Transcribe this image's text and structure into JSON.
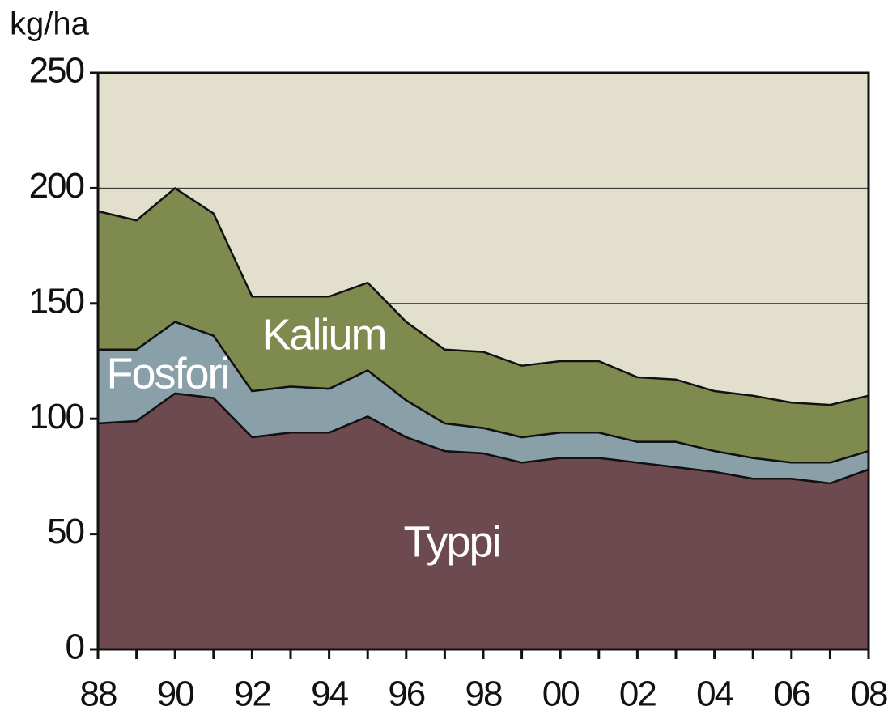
{
  "chart_data": {
    "type": "stacked_area",
    "y_label": "kg/ha",
    "categories": [
      "88",
      null,
      "90",
      null,
      "92",
      null,
      "94",
      null,
      "96",
      null,
      "98",
      null,
      "00",
      null,
      "02",
      null,
      "04",
      null,
      "06",
      null,
      "08"
    ],
    "series": [
      {
        "name": "Typpi",
        "color": "#6d4a4f",
        "values": [
          98,
          99,
          111,
          109,
          92,
          94,
          94,
          101,
          92,
          86,
          85,
          81,
          83,
          83,
          81,
          79,
          77,
          74,
          74,
          72,
          78
        ]
      },
      {
        "name": "Fosfori",
        "color": "#8aa0a9",
        "values": [
          32,
          31,
          31,
          27,
          20,
          20,
          19,
          20,
          16,
          12,
          11,
          11,
          11,
          11,
          9,
          11,
          9,
          9,
          7,
          9,
          8
        ]
      },
      {
        "name": "Kalium",
        "color": "#7e8a4e",
        "values": [
          60,
          56,
          58,
          53,
          41,
          39,
          40,
          38,
          34,
          32,
          33,
          31,
          31,
          31,
          28,
          27,
          26,
          27,
          26,
          25,
          24
        ]
      }
    ],
    "ylim": [
      0,
      250
    ],
    "yticks": [
      0,
      50,
      100,
      150,
      200,
      250
    ],
    "grid": true,
    "background": "#e2dfcc"
  }
}
